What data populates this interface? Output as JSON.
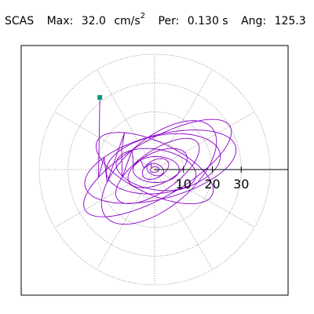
{
  "header": {
    "station": "SCAS",
    "max_label": "Max:",
    "max_value": "32.0",
    "max_unit_base": "cm/s",
    "max_unit_exp": "2",
    "per_label": "Per:",
    "per_value": "0.130 s",
    "ang_label": "Ang:",
    "ang_value": "125.3"
  },
  "chart_data": {
    "type": "polar-particle-motion",
    "tick_labels": [
      "10",
      "20",
      "30"
    ],
    "radial_ticks": [
      10,
      20,
      30
    ],
    "rmax": 40,
    "grid": true,
    "grid_angles_deg": [
      0,
      30,
      60,
      90,
      120,
      150,
      180,
      210,
      240,
      270,
      300,
      330
    ],
    "axis_angle_deg": 0,
    "colors": {
      "trace": "#8a00c8",
      "start_marker": "#009a80",
      "grid": "#777777",
      "axis": "#000000"
    },
    "trace_start": [
      -19.0,
      25.0
    ],
    "trace_loops": [
      {
        "cx": 1.0,
        "cy": 0.5,
        "a": 29.0,
        "b": 10.0,
        "rot": 30,
        "rev": 1
      },
      {
        "cx": 2.0,
        "cy": 1.0,
        "a": 27.0,
        "b": 11.0,
        "rot": 15,
        "rev": 1
      },
      {
        "cx": 1.5,
        "cy": -1.0,
        "a": 24.0,
        "b": 12.0,
        "rot": 40,
        "rev": 1
      },
      {
        "cx": 0.0,
        "cy": 0.5,
        "a": 22.0,
        "b": 9.0,
        "rot": -25,
        "rev": 1
      },
      {
        "cx": 3.0,
        "cy": 2.0,
        "a": 20.0,
        "b": 10.0,
        "rot": 10,
        "rev": 1
      },
      {
        "cx": 1.0,
        "cy": -0.5,
        "a": 17.0,
        "b": 7.0,
        "rot": 35,
        "rev": 1
      },
      {
        "cx": 0.5,
        "cy": 0.0,
        "a": 14.0,
        "b": 7.0,
        "rot": -10,
        "rev": 1
      },
      {
        "cx": 1.0,
        "cy": 0.5,
        "a": 11.0,
        "b": 5.5,
        "rot": 25,
        "rev": 1
      },
      {
        "cx": 0.5,
        "cy": 0.0,
        "a": 8.0,
        "b": 4.5,
        "rot": 0,
        "rev": 1
      },
      {
        "cx": 0.3,
        "cy": 0.2,
        "a": 5.0,
        "b": 3.0,
        "rot": 30,
        "rev": 2
      },
      {
        "cx": 0.2,
        "cy": 0.0,
        "a": 3.0,
        "b": 2.0,
        "rot": -20,
        "rev": 3
      },
      {
        "cx": 0.0,
        "cy": 0.0,
        "a": 1.5,
        "b": 1.0,
        "rot": 10,
        "rev": 4
      }
    ]
  }
}
